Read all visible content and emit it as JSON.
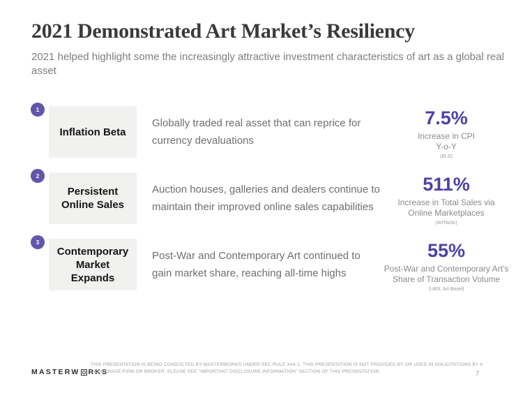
{
  "header": {
    "title": "2021 Demonstrated Art Market’s Resiliency",
    "subtitle": "2021 helped highlight some the increasingly attractive investment characteristics of art as a global real asset"
  },
  "rows": [
    {
      "number": "1",
      "label": "Inflation Beta",
      "description_line1": "Globally traded real asset that can reprice for",
      "description_line2": "currency devaluations",
      "stat_value": "7.5%",
      "caption_line1": "Increase in CPI",
      "caption_line2": "Y-o-Y",
      "source": "(BLS)"
    },
    {
      "number": "2",
      "label": "Persistent Online Sales",
      "description_line1": "Auction houses, galleries and dealers continue to",
      "description_line2": "maintain their improved online sales capabilities",
      "stat_value": "511%",
      "caption_line1": "Increase in Total Sales via",
      "caption_line2": "Online Marketplaces",
      "source": "(ArtTactic)"
    },
    {
      "number": "3",
      "label": "Contemporary Market Expands",
      "description_line1": "Post-War and Contemporary Art continued to",
      "description_line2": "gain market share, reaching all-time highs",
      "stat_value": "55%",
      "caption_line1": "Post-War and Contemporary Art’s",
      "caption_line2": "Share of Transaction Volume",
      "source": "(UBS, Art Basel)"
    }
  ],
  "footer": {
    "logo_prefix": "MASTERW",
    "logo_suffix": "RKS",
    "disclosure": "THIS PRESENTATION IS BEING CONDUCTED BY MASTERWORKS UNDER SEC RULE 3A4-1. THIS PRESENTATION IS NOT PROVIDED BY OR USED IN SOLICITATIONS BY A BROKERAGE FIRM OR BROKER. PLEASE SEE \"IMPORTANT DISCLOSURE INFORMATION\" SECTION OF THIS PRESENTATION",
    "page_number": "7"
  },
  "colors": {
    "accent_purple": "#4d42a3",
    "badge_purple": "#6156ab",
    "box_background": "#f1f1f0"
  }
}
